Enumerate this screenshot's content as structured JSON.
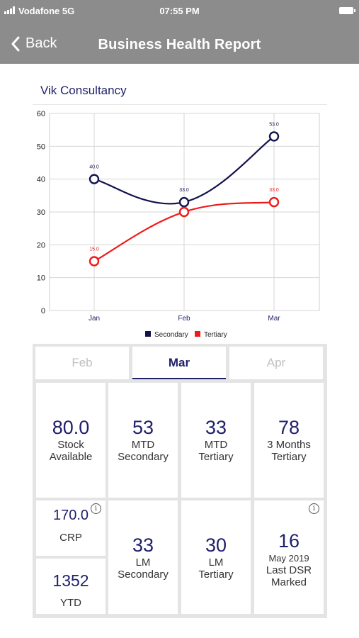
{
  "status_bar": {
    "carrier": "Vodafone 5G",
    "time": "07:55 PM"
  },
  "nav": {
    "back_label": "Back",
    "title": "Business Health Report"
  },
  "company": "Vik Consultancy",
  "chart_data": {
    "type": "line",
    "categories": [
      "Jan",
      "Feb",
      "Mar"
    ],
    "ylim": [
      0,
      60
    ],
    "yticks": [
      0,
      10,
      20,
      30,
      40,
      50,
      60
    ],
    "grid": true,
    "legend_position": "bottom",
    "series": [
      {
        "name": "Secondary",
        "color": "#12124d",
        "values": [
          40,
          33,
          53
        ],
        "labels": [
          "40.0",
          "33.0",
          "53.0"
        ]
      },
      {
        "name": "Tertiary",
        "color": "#ee1b1b",
        "values": [
          15,
          30,
          33
        ],
        "labels": [
          "15.0",
          "",
          "33.0"
        ]
      }
    ]
  },
  "tabs": [
    {
      "label": "Feb",
      "active": false
    },
    {
      "label": "Mar",
      "active": true
    },
    {
      "label": "Apr",
      "active": false
    }
  ],
  "cards": {
    "stock": {
      "value": "80.0",
      "label1": "Stock",
      "label2": "Available"
    },
    "mtd_secondary": {
      "value": "53",
      "label1": "MTD",
      "label2": "Secondary"
    },
    "mtd_tertiary": {
      "value": "33",
      "label1": "MTD",
      "label2": "Tertiary"
    },
    "three_months": {
      "value": "78",
      "label1": "3 Months",
      "label2": "Tertiary"
    },
    "crp": {
      "value": "170.0",
      "label": "CRP"
    },
    "ytd": {
      "value": "1352",
      "label": "YTD"
    },
    "lm_secondary": {
      "value": "33",
      "label1": "LM",
      "label2": "Secondary"
    },
    "lm_tertiary": {
      "value": "30",
      "label1": "LM",
      "label2": "Tertiary"
    },
    "dsr": {
      "value": "16",
      "date": "May 2019",
      "label1": "Last DSR",
      "label2": "Marked"
    }
  },
  "info_glyph": "i"
}
